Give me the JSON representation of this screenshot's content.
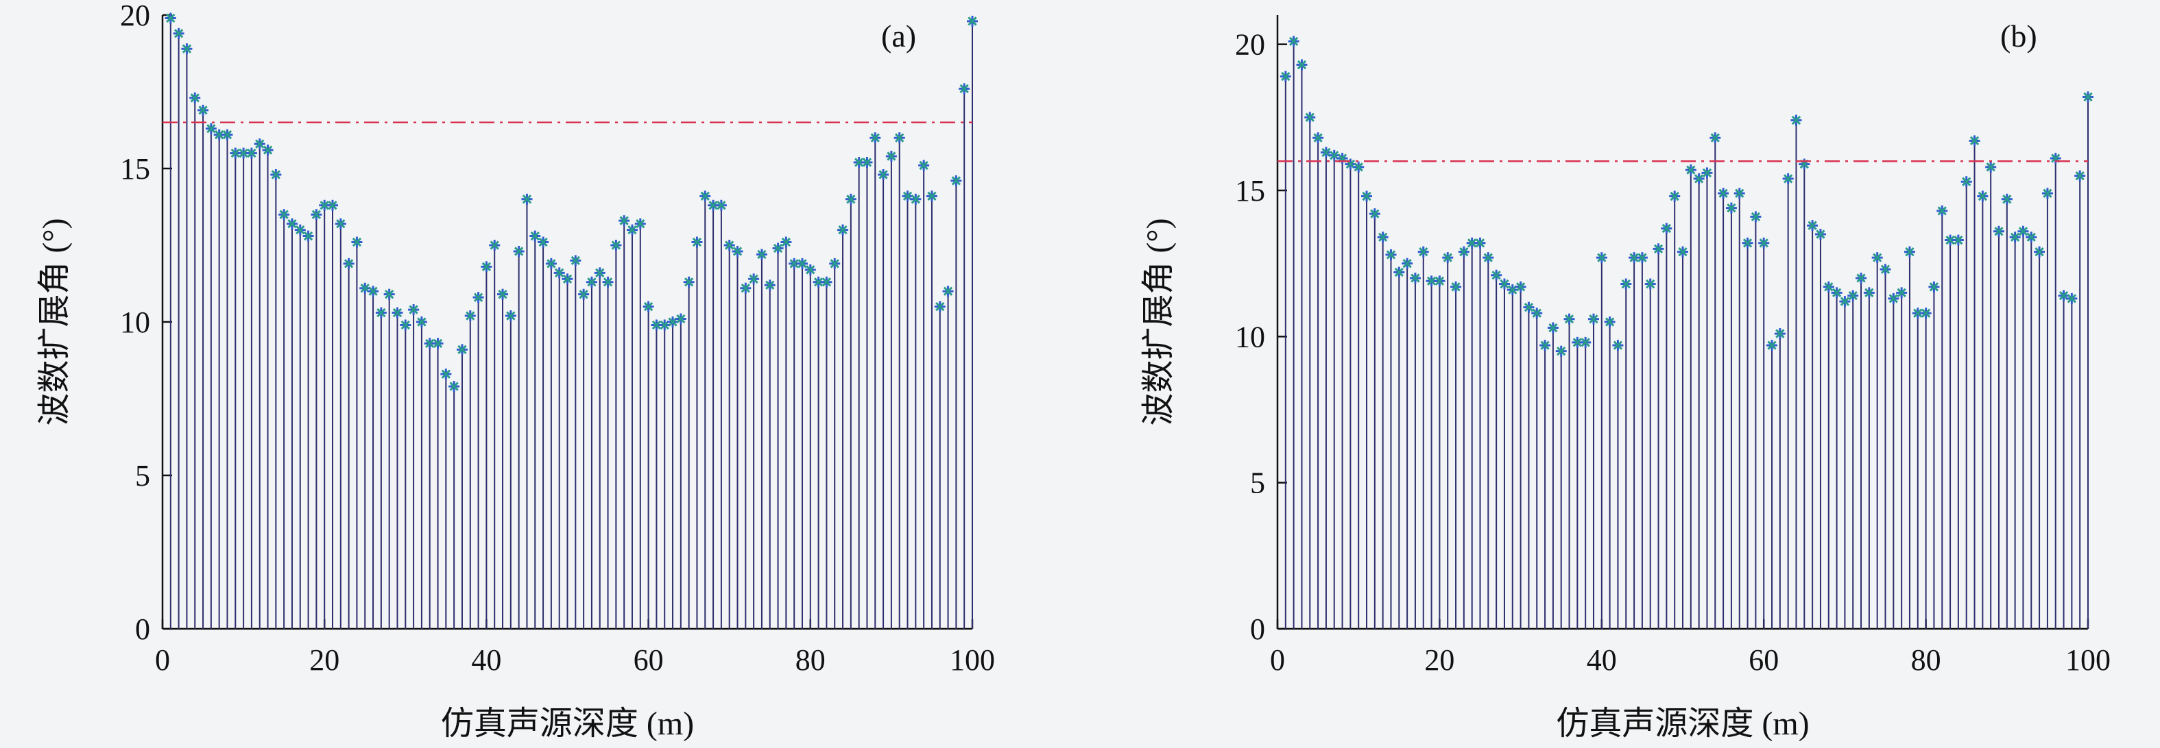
{
  "chart_data": [
    {
      "type": "stem",
      "panel_label": "(a)",
      "xlabel": "仿真声源深度 (m)",
      "ylabel": "波数扩展角 (°)",
      "xlim": [
        0,
        100
      ],
      "ylim": [
        0,
        20
      ],
      "xticks": [
        0,
        20,
        40,
        60,
        80,
        100
      ],
      "yticks": [
        0,
        5,
        10,
        15,
        20
      ],
      "threshold": 16.5,
      "x": [
        1,
        2,
        3,
        4,
        5,
        6,
        7,
        8,
        9,
        10,
        11,
        12,
        13,
        14,
        15,
        16,
        17,
        18,
        19,
        20,
        21,
        22,
        23,
        24,
        25,
        26,
        27,
        28,
        29,
        30,
        31,
        32,
        33,
        34,
        35,
        36,
        37,
        38,
        39,
        40,
        41,
        42,
        43,
        44,
        45,
        46,
        47,
        48,
        49,
        50,
        51,
        52,
        53,
        54,
        55,
        56,
        57,
        58,
        59,
        60,
        61,
        62,
        63,
        64,
        65,
        66,
        67,
        68,
        69,
        70,
        71,
        72,
        73,
        74,
        75,
        76,
        77,
        78,
        79,
        80,
        81,
        82,
        83,
        84,
        85,
        86,
        87,
        88,
        89,
        90,
        91,
        92,
        93,
        94,
        95,
        96,
        97,
        98,
        99,
        100
      ],
      "values": [
        19.9,
        19.4,
        18.9,
        17.3,
        16.9,
        16.3,
        16.1,
        16.1,
        15.5,
        15.5,
        15.5,
        15.8,
        15.6,
        14.8,
        13.5,
        13.2,
        13.0,
        12.8,
        13.5,
        13.8,
        13.8,
        13.2,
        11.9,
        12.6,
        11.1,
        11.0,
        10.3,
        10.9,
        10.3,
        9.9,
        10.4,
        10.0,
        9.3,
        9.3,
        8.3,
        7.9,
        9.1,
        10.2,
        10.8,
        11.8,
        12.5,
        10.9,
        10.2,
        12.3,
        14.0,
        12.8,
        12.6,
        11.9,
        11.6,
        11.4,
        12.0,
        10.9,
        11.3,
        11.6,
        11.3,
        12.5,
        13.3,
        13.0,
        13.2,
        10.5,
        9.9,
        9.9,
        10.0,
        10.1,
        11.3,
        12.6,
        14.1,
        13.8,
        13.8,
        12.5,
        12.3,
        11.1,
        11.4,
        12.2,
        11.2,
        12.4,
        12.6,
        11.9,
        11.9,
        11.7,
        11.3,
        11.3,
        11.9,
        13.0,
        14.0,
        15.2,
        15.2,
        16.0,
        14.8,
        15.4,
        16.0,
        14.1,
        14.0,
        15.1,
        14.1,
        10.5,
        11.0,
        14.6,
        17.6,
        19.8
      ]
    },
    {
      "type": "stem",
      "panel_label": "(b)",
      "xlabel": "仿真声源深度 (m)",
      "ylabel": "波数扩展角 (°)",
      "xlim": [
        0,
        100
      ],
      "ylim": [
        0,
        21
      ],
      "xticks": [
        0,
        20,
        40,
        60,
        80,
        100
      ],
      "yticks": [
        0,
        5,
        10,
        15,
        20
      ],
      "threshold": 16.0,
      "x": [
        1,
        2,
        3,
        4,
        5,
        6,
        7,
        8,
        9,
        10,
        11,
        12,
        13,
        14,
        15,
        16,
        17,
        18,
        19,
        20,
        21,
        22,
        23,
        24,
        25,
        26,
        27,
        28,
        29,
        30,
        31,
        32,
        33,
        34,
        35,
        36,
        37,
        38,
        39,
        40,
        41,
        42,
        43,
        44,
        45,
        46,
        47,
        48,
        49,
        50,
        51,
        52,
        53,
        54,
        55,
        56,
        57,
        58,
        59,
        60,
        61,
        62,
        63,
        64,
        65,
        66,
        67,
        68,
        69,
        70,
        71,
        72,
        73,
        74,
        75,
        76,
        77,
        78,
        79,
        80,
        81,
        82,
        83,
        84,
        85,
        86,
        87,
        88,
        89,
        90,
        91,
        92,
        93,
        94,
        95,
        96,
        97,
        98,
        99,
        100
      ],
      "values": [
        18.9,
        20.1,
        19.3,
        17.5,
        16.8,
        16.3,
        16.2,
        16.1,
        15.9,
        15.8,
        14.8,
        14.2,
        13.4,
        12.8,
        12.2,
        12.5,
        12.0,
        12.9,
        11.9,
        11.9,
        12.7,
        11.7,
        12.9,
        13.2,
        13.2,
        12.7,
        12.1,
        11.8,
        11.6,
        11.7,
        11.0,
        10.8,
        9.7,
        10.3,
        9.5,
        10.6,
        9.8,
        9.8,
        10.6,
        12.7,
        10.5,
        9.7,
        11.8,
        12.7,
        12.7,
        11.8,
        13.0,
        13.7,
        14.8,
        12.9,
        15.7,
        15.4,
        15.6,
        16.8,
        14.9,
        14.4,
        14.9,
        13.2,
        14.1,
        13.2,
        9.7,
        10.1,
        15.4,
        17.4,
        15.9,
        13.8,
        13.5,
        11.7,
        11.5,
        11.2,
        11.4,
        12.0,
        11.5,
        12.7,
        12.3,
        11.3,
        11.5,
        12.9,
        10.8,
        10.8,
        11.7,
        14.3,
        13.3,
        13.3,
        15.3,
        16.7,
        14.8,
        15.8,
        13.6,
        14.7,
        13.4,
        13.6,
        13.4,
        12.9,
        14.9,
        16.1,
        11.4,
        11.3,
        15.5,
        18.2
      ]
    }
  ],
  "colors": {
    "stem": "#2e2e6e",
    "marker": "#2f5fd0",
    "marker_accent": "#2a9a8a",
    "threshold": "#d9304f",
    "axis": "#111111"
  }
}
